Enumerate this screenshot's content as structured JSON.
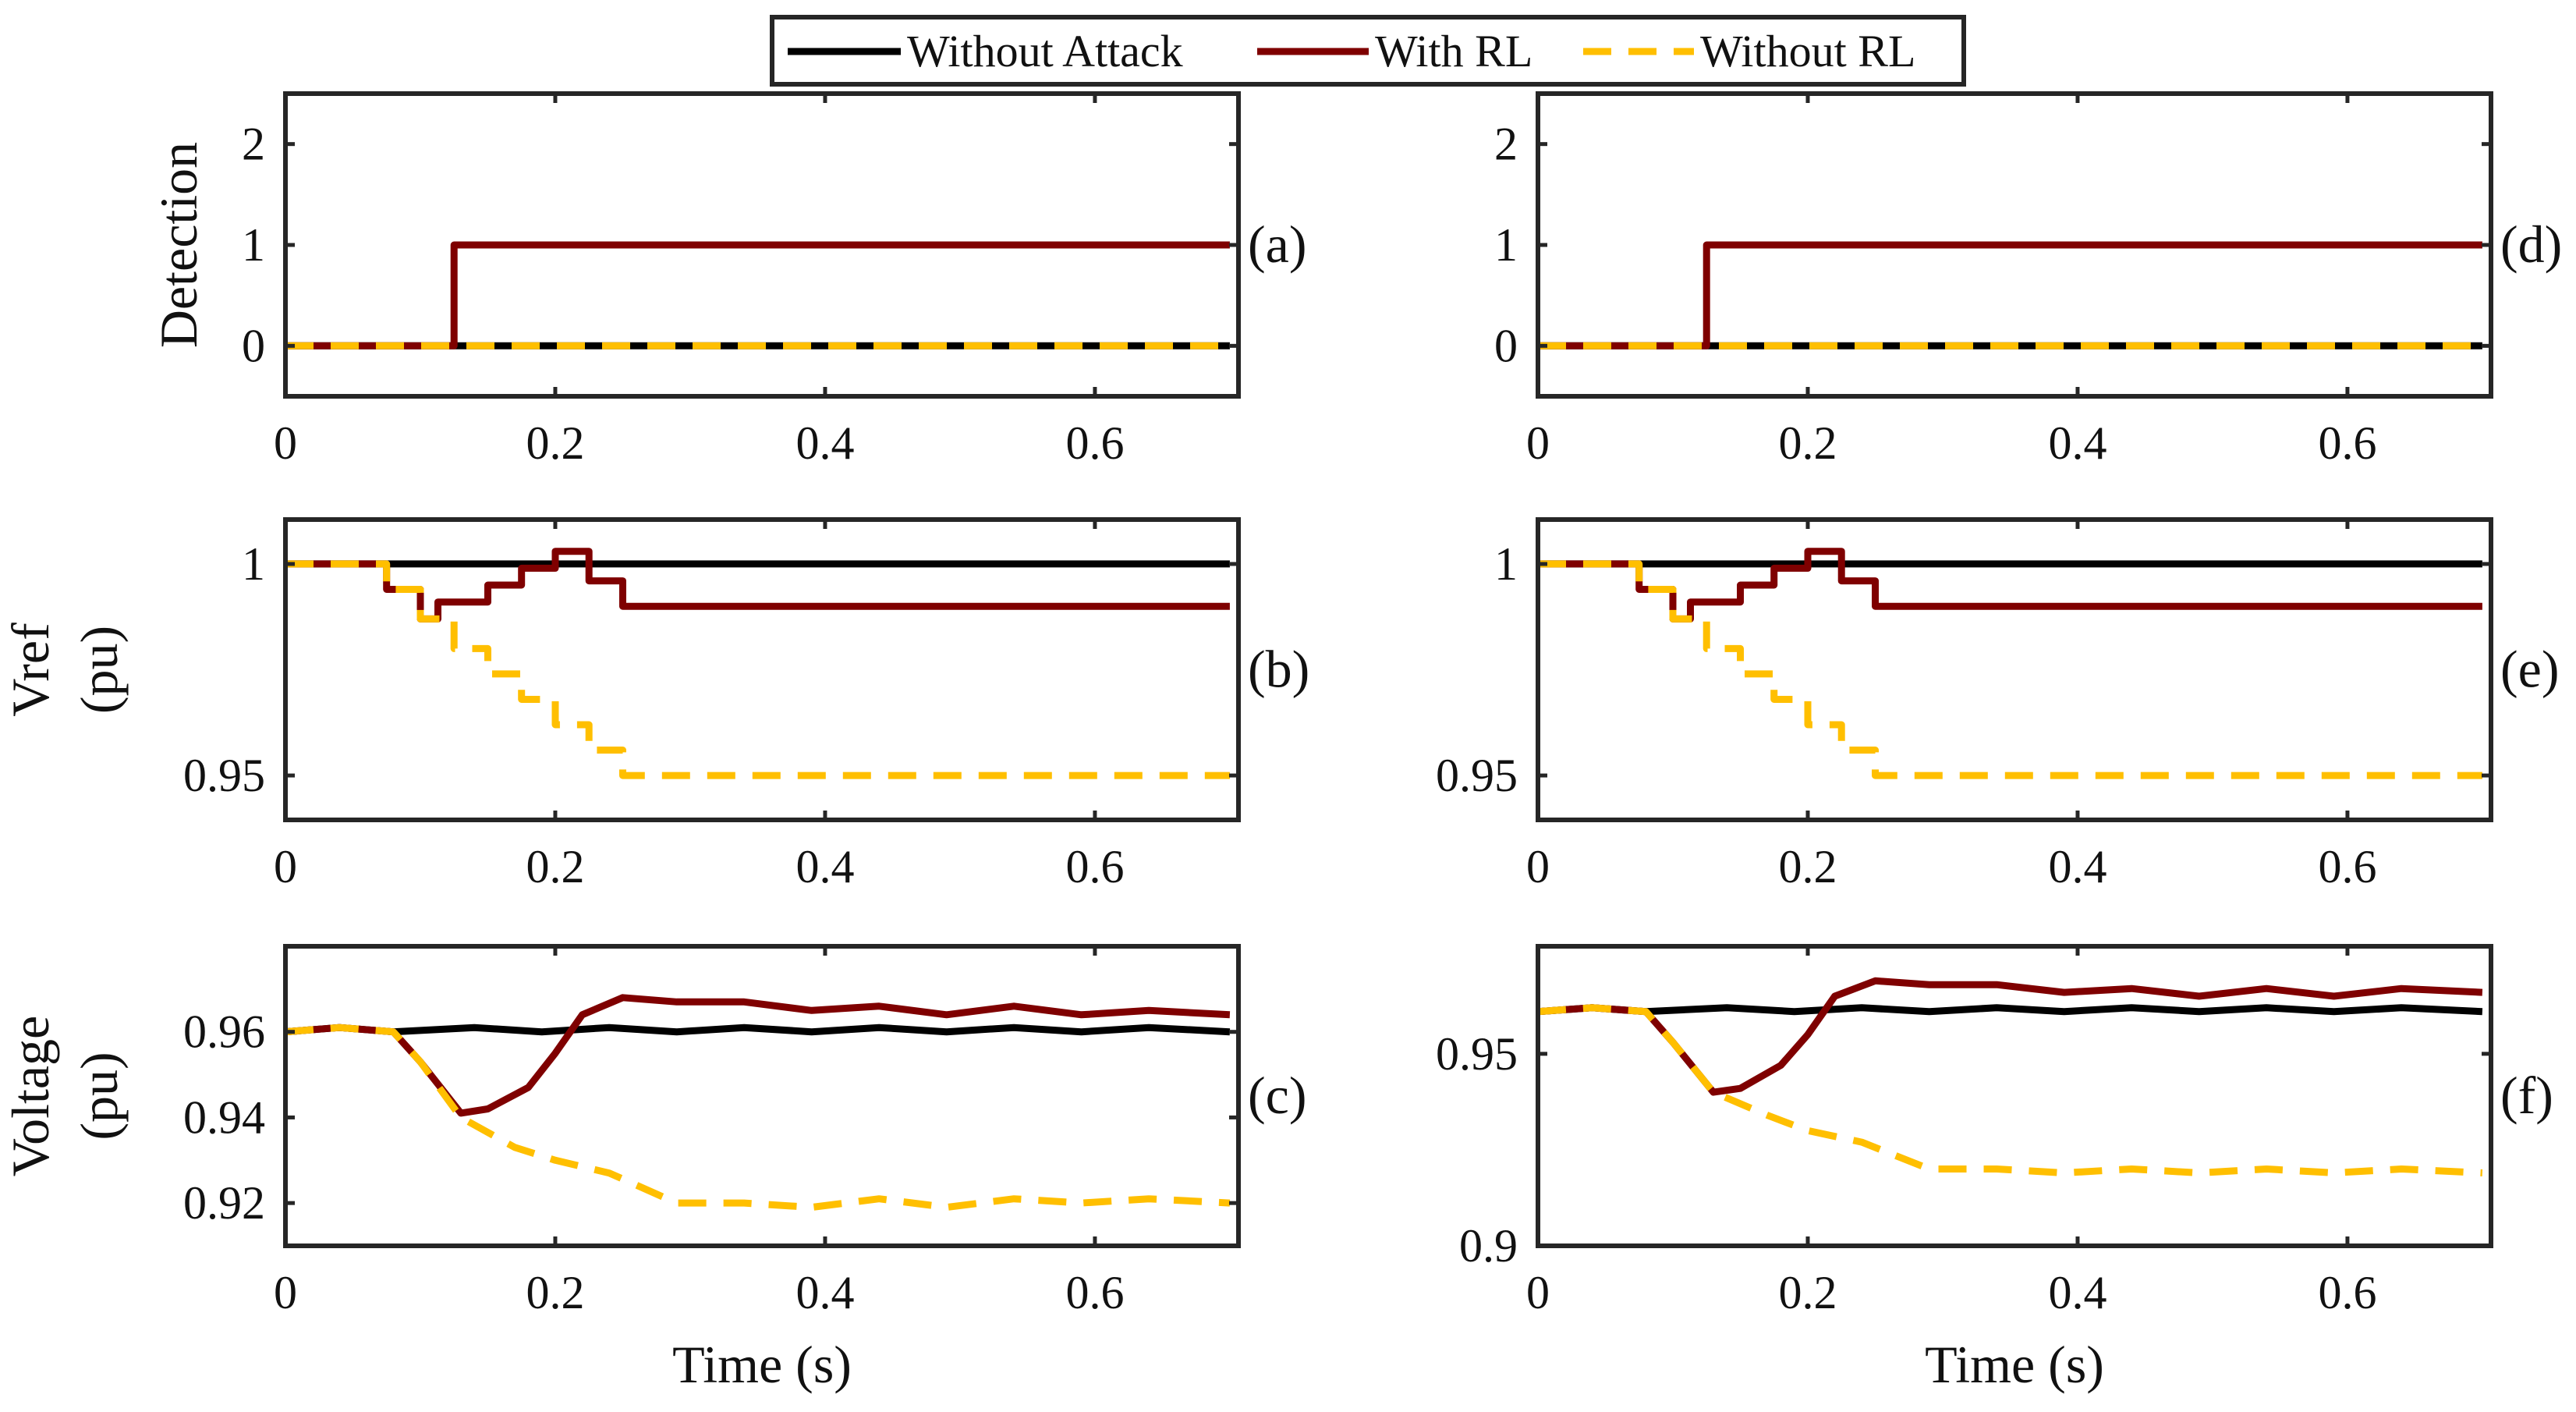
{
  "legend": {
    "entries": [
      {
        "label": "Without Attack",
        "color": "#000000",
        "style": "solid"
      },
      {
        "label": "With RL",
        "color": "#7f0000",
        "style": "solid"
      },
      {
        "label": "Without RL",
        "color": "#ffbf00",
        "style": "dashed"
      }
    ],
    "placement": "top-center"
  },
  "chart_data": [
    {
      "id": "a",
      "type": "line",
      "panel_label": "(a)",
      "ylabel": [
        "Detection"
      ],
      "xlabel": "",
      "xlim": [
        0,
        0.7064
      ],
      "ylim": [
        -0.5,
        2.5
      ],
      "xticks": [
        {
          "v": 0,
          "t": "0"
        },
        {
          "v": 0.2,
          "t": "0.2"
        },
        {
          "v": 0.4,
          "t": "0.4"
        },
        {
          "v": 0.6,
          "t": "0.6"
        }
      ],
      "yticks": [
        {
          "v": 0,
          "t": "0"
        },
        {
          "v": 1,
          "t": "1"
        },
        {
          "v": 2,
          "t": "2"
        }
      ],
      "series": [
        {
          "name": "Without Attack",
          "points": [
            [
              0,
              0
            ],
            [
              0.7,
              0
            ]
          ]
        },
        {
          "name": "With RL",
          "points": [
            [
              0,
              0
            ],
            [
              0.125,
              0
            ],
            [
              0.125,
              1
            ],
            [
              0.7,
              1
            ]
          ]
        },
        {
          "name": "Without RL",
          "points": [
            [
              0,
              0
            ],
            [
              0.7,
              0
            ]
          ]
        }
      ]
    },
    {
      "id": "b",
      "type": "line",
      "panel_label": "(b)",
      "ylabel": [
        "Vref",
        "(pu)"
      ],
      "xlabel": "",
      "xlim": [
        0,
        0.7064
      ],
      "ylim": [
        0.9395,
        1.0105
      ],
      "xticks": [
        {
          "v": 0,
          "t": "0"
        },
        {
          "v": 0.2,
          "t": "0.2"
        },
        {
          "v": 0.4,
          "t": "0.4"
        },
        {
          "v": 0.6,
          "t": "0.6"
        }
      ],
      "yticks": [
        {
          "v": 0.95,
          "t": "0.95"
        },
        {
          "v": 1,
          "t": "1"
        }
      ],
      "series": [
        {
          "name": "Without Attack",
          "points": [
            [
              0,
              1
            ],
            [
              0.7,
              1
            ]
          ]
        },
        {
          "name": "With RL",
          "points": [
            [
              0,
              1
            ],
            [
              0.075,
              1
            ],
            [
              0.075,
              0.994
            ],
            [
              0.1,
              0.994
            ],
            [
              0.1,
              0.987
            ],
            [
              0.113,
              0.987
            ],
            [
              0.113,
              0.991
            ],
            [
              0.15,
              0.991
            ],
            [
              0.15,
              0.995
            ],
            [
              0.175,
              0.995
            ],
            [
              0.175,
              0.999
            ],
            [
              0.2,
              0.999
            ],
            [
              0.2,
              1.003
            ],
            [
              0.225,
              1.003
            ],
            [
              0.225,
              0.996
            ],
            [
              0.25,
              0.996
            ],
            [
              0.25,
              0.99
            ],
            [
              0.7,
              0.99
            ]
          ]
        },
        {
          "name": "Without RL",
          "points": [
            [
              0,
              1
            ],
            [
              0.075,
              1
            ],
            [
              0.075,
              0.994
            ],
            [
              0.1,
              0.994
            ],
            [
              0.1,
              0.987
            ],
            [
              0.125,
              0.987
            ],
            [
              0.125,
              0.98
            ],
            [
              0.15,
              0.98
            ],
            [
              0.15,
              0.974
            ],
            [
              0.175,
              0.974
            ],
            [
              0.175,
              0.968
            ],
            [
              0.2,
              0.968
            ],
            [
              0.2,
              0.962
            ],
            [
              0.225,
              0.962
            ],
            [
              0.225,
              0.956
            ],
            [
              0.25,
              0.956
            ],
            [
              0.25,
              0.95
            ],
            [
              0.7,
              0.95
            ]
          ]
        }
      ]
    },
    {
      "id": "c",
      "type": "line",
      "panel_label": "(c)",
      "ylabel": [
        "Voltage",
        "(pu)"
      ],
      "xlabel": "Time (s)",
      "xlim": [
        0,
        0.7064
      ],
      "ylim": [
        0.91,
        0.98
      ],
      "xticks": [
        {
          "v": 0,
          "t": "0"
        },
        {
          "v": 0.2,
          "t": "0.2"
        },
        {
          "v": 0.4,
          "t": "0.4"
        },
        {
          "v": 0.6,
          "t": "0.6"
        }
      ],
      "yticks": [
        {
          "v": 0.92,
          "t": "0.92"
        },
        {
          "v": 0.94,
          "t": "0.94"
        },
        {
          "v": 0.96,
          "t": "0.96"
        }
      ],
      "series": [
        {
          "name": "Without Attack",
          "points": [
            [
              0,
              0.96
            ],
            [
              0.04,
              0.961
            ],
            [
              0.08,
              0.96
            ],
            [
              0.14,
              0.961
            ],
            [
              0.19,
              0.96
            ],
            [
              0.24,
              0.961
            ],
            [
              0.29,
              0.96
            ],
            [
              0.34,
              0.961
            ],
            [
              0.39,
              0.96
            ],
            [
              0.44,
              0.961
            ],
            [
              0.49,
              0.96
            ],
            [
              0.54,
              0.961
            ],
            [
              0.59,
              0.96
            ],
            [
              0.64,
              0.961
            ],
            [
              0.7,
              0.96
            ]
          ]
        },
        {
          "name": "With RL",
          "points": [
            [
              0,
              0.96
            ],
            [
              0.04,
              0.961
            ],
            [
              0.08,
              0.96
            ],
            [
              0.1,
              0.953
            ],
            [
              0.13,
              0.941
            ],
            [
              0.15,
              0.942
            ],
            [
              0.18,
              0.947
            ],
            [
              0.2,
              0.955
            ],
            [
              0.22,
              0.964
            ],
            [
              0.25,
              0.968
            ],
            [
              0.29,
              0.967
            ],
            [
              0.34,
              0.967
            ],
            [
              0.39,
              0.965
            ],
            [
              0.44,
              0.966
            ],
            [
              0.49,
              0.964
            ],
            [
              0.54,
              0.966
            ],
            [
              0.59,
              0.964
            ],
            [
              0.64,
              0.965
            ],
            [
              0.7,
              0.964
            ]
          ]
        },
        {
          "name": "Without RL",
          "points": [
            [
              0,
              0.96
            ],
            [
              0.04,
              0.961
            ],
            [
              0.08,
              0.96
            ],
            [
              0.1,
              0.953
            ],
            [
              0.13,
              0.94
            ],
            [
              0.17,
              0.933
            ],
            [
              0.2,
              0.93
            ],
            [
              0.24,
              0.927
            ],
            [
              0.29,
              0.92
            ],
            [
              0.34,
              0.92
            ],
            [
              0.39,
              0.919
            ],
            [
              0.44,
              0.921
            ],
            [
              0.49,
              0.919
            ],
            [
              0.54,
              0.921
            ],
            [
              0.59,
              0.92
            ],
            [
              0.64,
              0.921
            ],
            [
              0.7,
              0.92
            ]
          ]
        }
      ]
    },
    {
      "id": "d",
      "type": "line",
      "panel_label": "(d)",
      "ylabel": [],
      "xlabel": "",
      "xlim": [
        0,
        0.7064
      ],
      "ylim": [
        -0.5,
        2.5
      ],
      "xticks": [
        {
          "v": 0,
          "t": "0"
        },
        {
          "v": 0.2,
          "t": "0.2"
        },
        {
          "v": 0.4,
          "t": "0.4"
        },
        {
          "v": 0.6,
          "t": "0.6"
        }
      ],
      "yticks": [
        {
          "v": 0,
          "t": "0"
        },
        {
          "v": 1,
          "t": "1"
        },
        {
          "v": 2,
          "t": "2"
        }
      ],
      "series": [
        {
          "name": "Without Attack",
          "points": [
            [
              0,
              0
            ],
            [
              0.7,
              0
            ]
          ]
        },
        {
          "name": "With RL",
          "points": [
            [
              0,
              0
            ],
            [
              0.125,
              0
            ],
            [
              0.125,
              1
            ],
            [
              0.7,
              1
            ]
          ]
        },
        {
          "name": "Without RL",
          "points": [
            [
              0,
              0
            ],
            [
              0.7,
              0
            ]
          ]
        }
      ]
    },
    {
      "id": "e",
      "type": "line",
      "panel_label": "(e)",
      "ylabel": [],
      "xlabel": "",
      "xlim": [
        0,
        0.7064
      ],
      "ylim": [
        0.9395,
        1.0105
      ],
      "xticks": [
        {
          "v": 0,
          "t": "0"
        },
        {
          "v": 0.2,
          "t": "0.2"
        },
        {
          "v": 0.4,
          "t": "0.4"
        },
        {
          "v": 0.6,
          "t": "0.6"
        }
      ],
      "yticks": [
        {
          "v": 0.95,
          "t": "0.95"
        },
        {
          "v": 1,
          "t": "1"
        }
      ],
      "series": [
        {
          "name": "Without Attack",
          "points": [
            [
              0,
              1
            ],
            [
              0.7,
              1
            ]
          ]
        },
        {
          "name": "With RL",
          "points": [
            [
              0,
              1
            ],
            [
              0.075,
              1
            ],
            [
              0.075,
              0.994
            ],
            [
              0.1,
              0.994
            ],
            [
              0.1,
              0.987
            ],
            [
              0.113,
              0.987
            ],
            [
              0.113,
              0.991
            ],
            [
              0.15,
              0.991
            ],
            [
              0.15,
              0.995
            ],
            [
              0.175,
              0.995
            ],
            [
              0.175,
              0.999
            ],
            [
              0.2,
              0.999
            ],
            [
              0.2,
              1.003
            ],
            [
              0.225,
              1.003
            ],
            [
              0.225,
              0.996
            ],
            [
              0.25,
              0.996
            ],
            [
              0.25,
              0.99
            ],
            [
              0.7,
              0.99
            ]
          ]
        },
        {
          "name": "Without RL",
          "points": [
            [
              0,
              1
            ],
            [
              0.075,
              1
            ],
            [
              0.075,
              0.994
            ],
            [
              0.1,
              0.994
            ],
            [
              0.1,
              0.987
            ],
            [
              0.125,
              0.987
            ],
            [
              0.125,
              0.98
            ],
            [
              0.15,
              0.98
            ],
            [
              0.15,
              0.974
            ],
            [
              0.175,
              0.974
            ],
            [
              0.175,
              0.968
            ],
            [
              0.2,
              0.968
            ],
            [
              0.2,
              0.962
            ],
            [
              0.225,
              0.962
            ],
            [
              0.225,
              0.956
            ],
            [
              0.25,
              0.956
            ],
            [
              0.25,
              0.95
            ],
            [
              0.7,
              0.95
            ]
          ]
        }
      ]
    },
    {
      "id": "f",
      "type": "line",
      "panel_label": "(f)",
      "ylabel": [],
      "xlabel": "Time (s)",
      "xlim": [
        0,
        0.7064
      ],
      "ylim": [
        0.9,
        0.978
      ],
      "xticks": [
        {
          "v": 0,
          "t": "0"
        },
        {
          "v": 0.2,
          "t": "0.2"
        },
        {
          "v": 0.4,
          "t": "0.4"
        },
        {
          "v": 0.6,
          "t": "0.6"
        }
      ],
      "yticks": [
        {
          "v": 0.9,
          "t": "0.9"
        },
        {
          "v": 0.95,
          "t": "0.95"
        }
      ],
      "series": [
        {
          "name": "Without Attack",
          "points": [
            [
              0,
              0.961
            ],
            [
              0.04,
              0.962
            ],
            [
              0.08,
              0.961
            ],
            [
              0.14,
              0.962
            ],
            [
              0.19,
              0.961
            ],
            [
              0.24,
              0.962
            ],
            [
              0.29,
              0.961
            ],
            [
              0.34,
              0.962
            ],
            [
              0.39,
              0.961
            ],
            [
              0.44,
              0.962
            ],
            [
              0.49,
              0.961
            ],
            [
              0.54,
              0.962
            ],
            [
              0.59,
              0.961
            ],
            [
              0.64,
              0.962
            ],
            [
              0.7,
              0.961
            ]
          ]
        },
        {
          "name": "With RL",
          "points": [
            [
              0,
              0.961
            ],
            [
              0.04,
              0.962
            ],
            [
              0.08,
              0.961
            ],
            [
              0.1,
              0.953
            ],
            [
              0.13,
              0.94
            ],
            [
              0.15,
              0.941
            ],
            [
              0.18,
              0.947
            ],
            [
              0.2,
              0.955
            ],
            [
              0.22,
              0.965
            ],
            [
              0.25,
              0.969
            ],
            [
              0.29,
              0.968
            ],
            [
              0.34,
              0.968
            ],
            [
              0.39,
              0.966
            ],
            [
              0.44,
              0.967
            ],
            [
              0.49,
              0.965
            ],
            [
              0.54,
              0.967
            ],
            [
              0.59,
              0.965
            ],
            [
              0.64,
              0.967
            ],
            [
              0.7,
              0.966
            ]
          ]
        },
        {
          "name": "Without RL",
          "points": [
            [
              0,
              0.961
            ],
            [
              0.04,
              0.962
            ],
            [
              0.08,
              0.961
            ],
            [
              0.1,
              0.953
            ],
            [
              0.13,
              0.94
            ],
            [
              0.17,
              0.934
            ],
            [
              0.2,
              0.93
            ],
            [
              0.24,
              0.927
            ],
            [
              0.29,
              0.92
            ],
            [
              0.34,
              0.92
            ],
            [
              0.39,
              0.919
            ],
            [
              0.44,
              0.92
            ],
            [
              0.49,
              0.919
            ],
            [
              0.54,
              0.92
            ],
            [
              0.59,
              0.919
            ],
            [
              0.64,
              0.92
            ],
            [
              0.7,
              0.919
            ]
          ]
        }
      ]
    }
  ]
}
